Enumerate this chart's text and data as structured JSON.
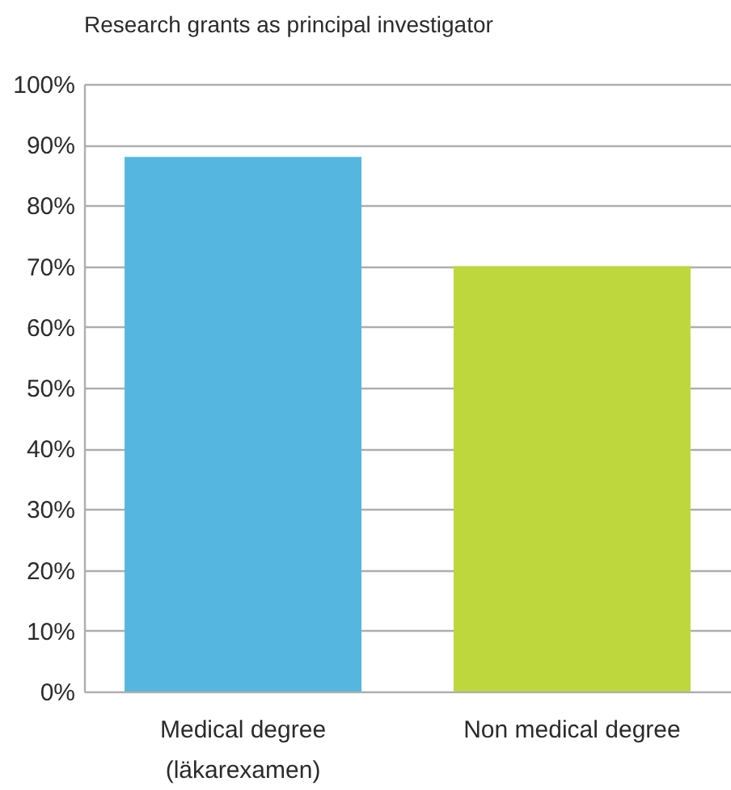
{
  "chart_data": {
    "type": "bar",
    "title": "Research grants as principal investigator",
    "categories": [
      "Medical degree\n(läkarexamen)",
      "Non medical degree"
    ],
    "values": [
      88,
      70
    ],
    "colors": [
      "#55b7e0",
      "#bed73c"
    ],
    "ylim": [
      0,
      100
    ],
    "yticks": [
      {
        "value": 0,
        "label": "0%"
      },
      {
        "value": 10,
        "label": "10%"
      },
      {
        "value": 20,
        "label": "20%"
      },
      {
        "value": 30,
        "label": "30%"
      },
      {
        "value": 40,
        "label": "40%"
      },
      {
        "value": 50,
        "label": "50%"
      },
      {
        "value": 60,
        "label": "60%"
      },
      {
        "value": 70,
        "label": "70%"
      },
      {
        "value": 80,
        "label": "80%"
      },
      {
        "value": 90,
        "label": "90%"
      },
      {
        "value": 100,
        "label": "100%"
      }
    ],
    "grid": "y"
  }
}
